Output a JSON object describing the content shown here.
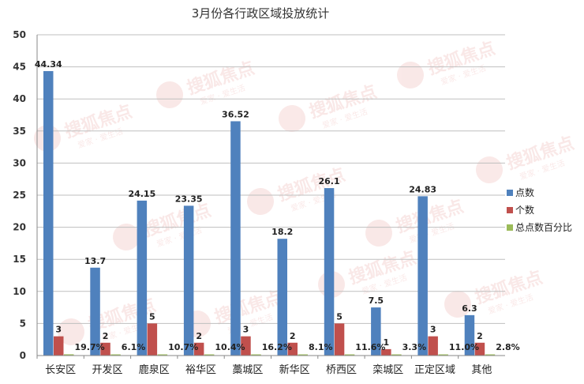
{
  "chart_data": {
    "type": "bar",
    "title": "3月份各行政区域投放统计",
    "categories": [
      "长安区",
      "开发区",
      "鹿泉区",
      "裕华区",
      "藁城区",
      "新华区",
      "桥西区",
      "栾城区",
      "正定区域",
      "其他"
    ],
    "series": [
      {
        "name": "点数",
        "color": "#4F81BD",
        "values": [
          44.34,
          13.7,
          24.15,
          23.35,
          36.52,
          18.2,
          26.1,
          7.5,
          24.83,
          6.3
        ],
        "labels": [
          "44.34",
          "13.7",
          "24.15",
          "23.35",
          "36.52",
          "18.2",
          "26.1",
          "7.5",
          "24.83",
          "6.3"
        ]
      },
      {
        "name": "个数",
        "color": "#C0504D",
        "values": [
          3,
          2,
          5,
          2,
          3,
          2,
          5,
          1,
          3,
          2
        ],
        "labels": [
          "3",
          "2",
          "5",
          "2",
          "3",
          "2",
          "5",
          "1",
          "3",
          "2"
        ]
      },
      {
        "name": "总点数百分比",
        "color": "#9BBB59",
        "values": [
          0.197,
          0.061,
          0.107,
          0.104,
          0.162,
          0.081,
          0.116,
          0.033,
          0.11,
          0.028
        ],
        "labels": [
          "19.7%",
          "6.1%",
          "10.7%",
          "10.4%",
          "16.2%",
          "8.1%",
          "11.6%",
          "3.3%",
          "11.0%",
          "2.8%"
        ]
      }
    ],
    "ylim": [
      0,
      50
    ],
    "yticks": [
      "0",
      "5",
      "10",
      "15",
      "20",
      "25",
      "30",
      "35",
      "40",
      "45",
      "50"
    ],
    "grid": true,
    "legend_position": "right"
  },
  "watermark": {
    "brand": "搜狐焦点",
    "slogan": "爱家 · 爱生活"
  }
}
